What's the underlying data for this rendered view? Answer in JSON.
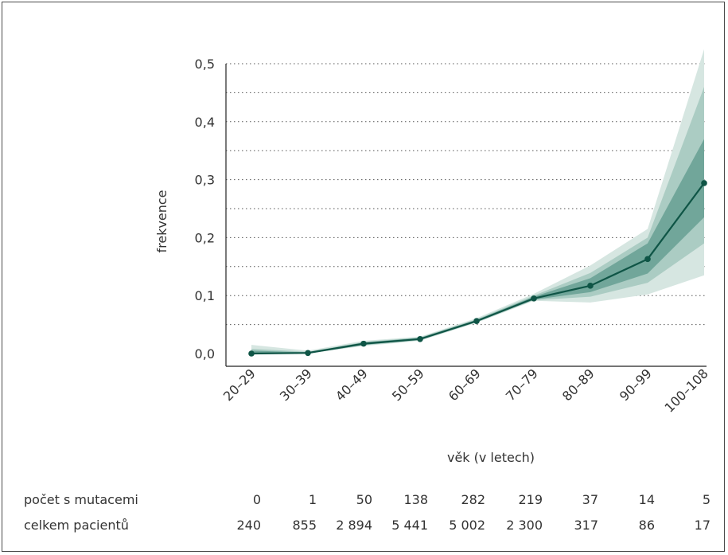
{
  "chart_data": {
    "type": "line",
    "categories": [
      "20–29",
      "30–39",
      "40–49",
      "50–59",
      "60–69",
      "70–79",
      "80–89",
      "90–99",
      "100–108"
    ],
    "series": [
      {
        "values": [
          0.0,
          0.001,
          0.017,
          0.025,
          0.056,
          0.095,
          0.117,
          0.163,
          0.294
        ]
      }
    ],
    "bands": [
      {
        "lower": [
          0.0,
          0.0,
          0.013,
          0.022,
          0.053,
          0.091,
          0.088,
          0.102,
          0.135
        ],
        "upper": [
          0.015,
          0.005,
          0.022,
          0.029,
          0.061,
          0.103,
          0.152,
          0.215,
          0.525
        ]
      },
      {
        "lower": [
          0.0,
          0.0,
          0.014,
          0.023,
          0.054,
          0.092,
          0.098,
          0.122,
          0.19
        ],
        "upper": [
          0.008,
          0.003,
          0.02,
          0.028,
          0.059,
          0.1,
          0.139,
          0.2,
          0.46
        ]
      },
      {
        "lower": [
          0.0,
          0.0,
          0.015,
          0.024,
          0.055,
          0.093,
          0.106,
          0.138,
          0.235
        ],
        "upper": [
          0.005,
          0.002,
          0.019,
          0.027,
          0.058,
          0.098,
          0.13,
          0.19,
          0.37
        ]
      }
    ],
    "xlabel": "věk (v letech)",
    "ylabel": "frekvence",
    "yticks": [
      "0,0",
      "0,1",
      "0,2",
      "0,3",
      "0,4",
      "0,5"
    ],
    "ylim": [
      0,
      0.5
    ],
    "grid": "dotted horizontal",
    "colors": {
      "line": "#0f5546",
      "band_outer": "#d6e6e1",
      "band_mid": "#9cc3b8",
      "band_inner": "#5e9a8c"
    },
    "table": {
      "rows": [
        {
          "label": "počet s mutacemi",
          "values": [
            "0",
            "1",
            "50",
            "138",
            "282",
            "219",
            "37",
            "14",
            "5"
          ]
        },
        {
          "label": "celkem pacientů",
          "values": [
            "240",
            "855",
            "2 894",
            "5 441",
            "5 002",
            "2 300",
            "317",
            "86",
            "17"
          ]
        }
      ]
    }
  }
}
